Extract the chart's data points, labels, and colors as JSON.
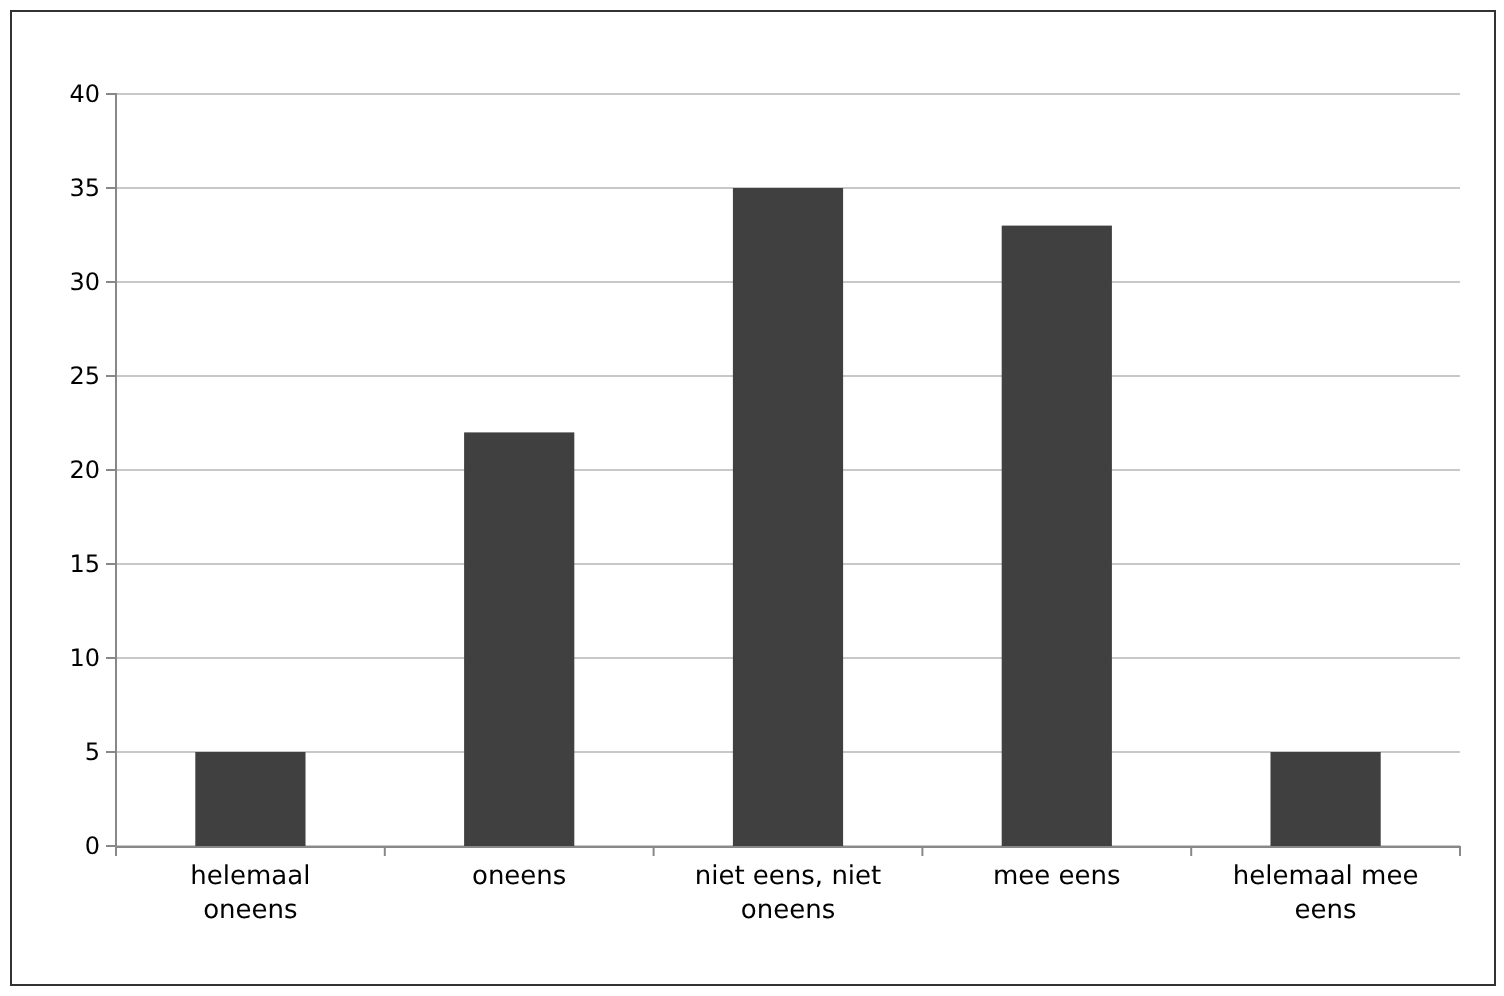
{
  "chart_data": {
    "type": "bar",
    "categories": [
      "helemaal oneens",
      "oneens",
      "niet eens, niet oneens",
      "mee eens",
      "helemaal mee eens"
    ],
    "values": [
      5,
      22,
      35,
      33,
      5
    ],
    "color": "#404040",
    "ylim": [
      0,
      40
    ],
    "yticks": [
      0,
      5,
      10,
      15,
      20,
      25,
      30,
      35,
      40
    ],
    "grid": "y"
  }
}
